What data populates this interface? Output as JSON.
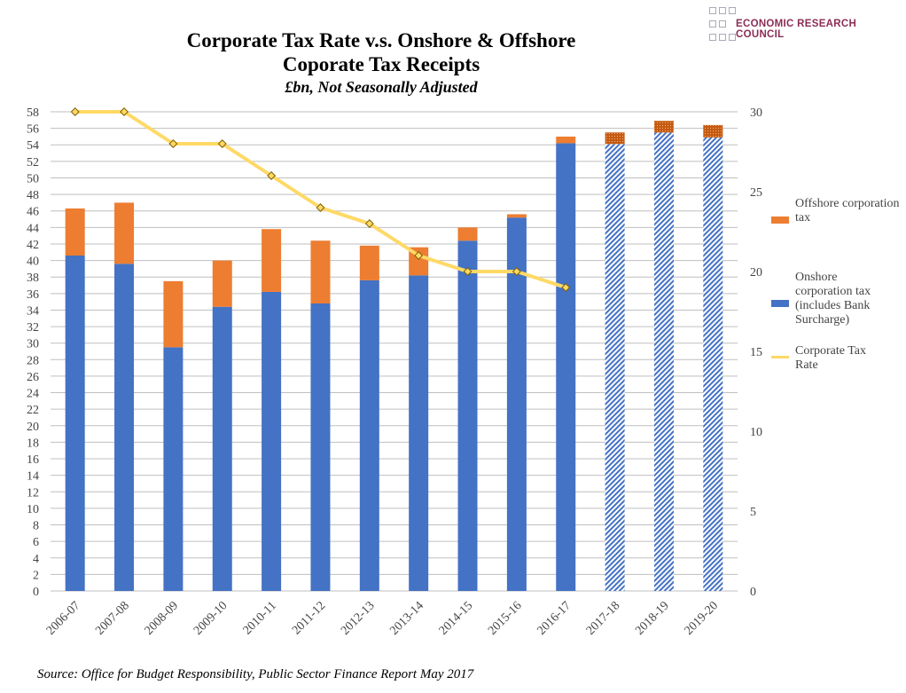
{
  "header": {
    "title_line1": "Corporate Tax Rate v.s. Onshore & Offshore",
    "title_line2": "Coporate Tax Receipts",
    "subtitle": "£bn, Not Seasonally Adjusted"
  },
  "logo": {
    "text": "ECONOMIC RESEARCH COUNCIL"
  },
  "source": "Source: Office for Budget Responsibility,  Public Sector Finance Report May 2017",
  "chart_data": {
    "type": "bar",
    "stacked": true,
    "title": "Corporate Tax Rate v.s. Onshore & Offshore Coporate Tax Receipts",
    "subtitle": "£bn, Not Seasonally Adjusted",
    "categories": [
      "2006-07",
      "2007-08",
      "2008-09",
      "2009-10",
      "2010-11",
      "2011-12",
      "2012-13",
      "2013-14",
      "2014-15",
      "2015-16",
      "2016-17",
      "2017-18",
      "2018-19",
      "2019-20"
    ],
    "forecast_from": "2017-18",
    "ylim": [
      0,
      58
    ],
    "y_ticks_step": 2,
    "y2lim": [
      0,
      30
    ],
    "y2_ticks_step": 5,
    "grid": true,
    "legend_position": "right",
    "series": [
      {
        "name": "Onshore corporation tax (includes Bank Surcharge)",
        "type": "bar",
        "axis": "left",
        "color": "#4472c4",
        "values": [
          40.6,
          39.6,
          29.5,
          34.4,
          36.2,
          34.8,
          37.6,
          38.2,
          42.4,
          45.2,
          54.2,
          54.1,
          55.5,
          54.9
        ]
      },
      {
        "name": "Offshore corporation tax",
        "type": "bar",
        "axis": "left",
        "color": "#ed7d31",
        "values": [
          5.7,
          7.4,
          8.0,
          5.6,
          7.6,
          7.6,
          4.2,
          3.4,
          1.6,
          0.4,
          0.8,
          1.4,
          1.4,
          1.5
        ]
      },
      {
        "name": "Corporate Tax Rate",
        "type": "line",
        "axis": "right",
        "color": "#ffd966",
        "values": [
          30,
          30,
          28,
          28,
          26,
          24,
          23,
          21,
          20,
          20,
          19,
          null,
          null,
          null
        ]
      }
    ]
  }
}
